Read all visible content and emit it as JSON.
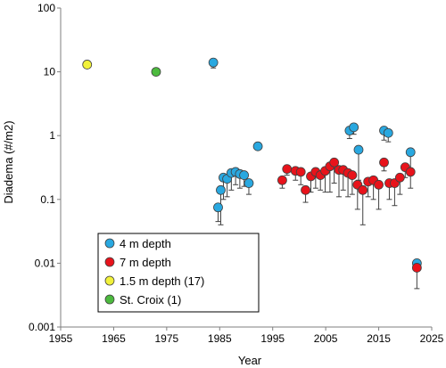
{
  "chart_data": {
    "type": "scatter",
    "title": "",
    "xlabel": "Year",
    "ylabel": "Diadema (#/m2)",
    "xlim": [
      1955,
      2025
    ],
    "ylim": [
      0.001,
      100
    ],
    "y_scale": "log",
    "x_ticks": [
      "1955",
      "1965",
      "1975",
      "1985",
      "1995",
      "2005",
      "2015",
      "2025"
    ],
    "y_ticks": [
      "0.001",
      "0.01",
      "0.1",
      "1",
      "10",
      "100"
    ],
    "grid": false,
    "legend_position": "lower-left",
    "series": [
      {
        "name": "4 m depth",
        "color": "#29a8e0",
        "points": [
          {
            "x": 1983.8,
            "y": 14,
            "err": 2.5
          },
          {
            "x": 1984.7,
            "y": 0.075,
            "err": 0.03
          },
          {
            "x": 1985.2,
            "y": 0.14,
            "err": 0.1
          },
          {
            "x": 1985.7,
            "y": 0.22,
            "err": 0.12
          },
          {
            "x": 1986.4,
            "y": 0.21,
            "err": 0.1
          },
          {
            "x": 1987.2,
            "y": 0.26,
            "err": 0.12
          },
          {
            "x": 1988.0,
            "y": 0.27,
            "err": 0.1
          },
          {
            "x": 1988.8,
            "y": 0.25,
            "err": 0.1
          },
          {
            "x": 1989.6,
            "y": 0.24,
            "err": 0.08
          },
          {
            "x": 1990.5,
            "y": 0.18,
            "err": 0.06
          },
          {
            "x": 1992.2,
            "y": 0.68,
            "err": 0
          },
          {
            "x": 2009.5,
            "y": 1.2,
            "err": 0.3
          },
          {
            "x": 2010.3,
            "y": 1.35,
            "err": 0.3
          },
          {
            "x": 2011.2,
            "y": 0.6,
            "err": 0.4
          },
          {
            "x": 2016.0,
            "y": 1.2,
            "err": 0.35
          },
          {
            "x": 2016.8,
            "y": 1.1,
            "err": 0.3
          },
          {
            "x": 2021.0,
            "y": 0.55,
            "err": 0.25
          },
          {
            "x": 2022.2,
            "y": 0.01,
            "err": 0.002
          }
        ]
      },
      {
        "name": "7 m depth",
        "color": "#e8131b",
        "points": [
          {
            "x": 1996.8,
            "y": 0.2,
            "err": 0.05
          },
          {
            "x": 1997.7,
            "y": 0.3,
            "err": 0.06
          },
          {
            "x": 1999.3,
            "y": 0.28,
            "err": 0.08
          },
          {
            "x": 2000.3,
            "y": 0.27,
            "err": 0.1
          },
          {
            "x": 2001.2,
            "y": 0.14,
            "err": 0.05
          },
          {
            "x": 2002.2,
            "y": 0.23,
            "err": 0.1
          },
          {
            "x": 2003.1,
            "y": 0.27,
            "err": 0.12
          },
          {
            "x": 2004.0,
            "y": 0.24,
            "err": 0.1
          },
          {
            "x": 2004.9,
            "y": 0.28,
            "err": 0.15
          },
          {
            "x": 2005.8,
            "y": 0.33,
            "err": 0.2
          },
          {
            "x": 2006.6,
            "y": 0.38,
            "err": 0.2
          },
          {
            "x": 2007.5,
            "y": 0.29,
            "err": 0.18
          },
          {
            "x": 2008.3,
            "y": 0.29,
            "err": 0.15
          },
          {
            "x": 2009.2,
            "y": 0.26,
            "err": 0.15
          },
          {
            "x": 2010.0,
            "y": 0.24,
            "err": 0.12
          },
          {
            "x": 2011.0,
            "y": 0.17,
            "err": 0.1
          },
          {
            "x": 2012.0,
            "y": 0.14,
            "err": 0.1
          },
          {
            "x": 2013.0,
            "y": 0.19,
            "err": 0.08
          },
          {
            "x": 2014.0,
            "y": 0.2,
            "err": 0.1
          },
          {
            "x": 2015.0,
            "y": 0.17,
            "err": 0.1
          },
          {
            "x": 2016.0,
            "y": 0.38,
            "err": 0.1
          },
          {
            "x": 2017.0,
            "y": 0.18,
            "err": 0.08
          },
          {
            "x": 2018.0,
            "y": 0.18,
            "err": 0.1
          },
          {
            "x": 2019.0,
            "y": 0.22,
            "err": 0.1
          },
          {
            "x": 2020.0,
            "y": 0.32,
            "err": 0.1
          },
          {
            "x": 2021.0,
            "y": 0.27,
            "err": 0.12
          },
          {
            "x": 2022.2,
            "y": 0.0085,
            "err": 0.0045
          }
        ]
      },
      {
        "name": "1.5 m depth (17)",
        "color": "#f1f13a",
        "points": [
          {
            "x": 1960.0,
            "y": 13,
            "err": 0
          }
        ]
      },
      {
        "name": "St. Croix (1)",
        "color": "#4cba3e",
        "points": [
          {
            "x": 1973.0,
            "y": 10,
            "err": 0
          }
        ]
      }
    ]
  }
}
